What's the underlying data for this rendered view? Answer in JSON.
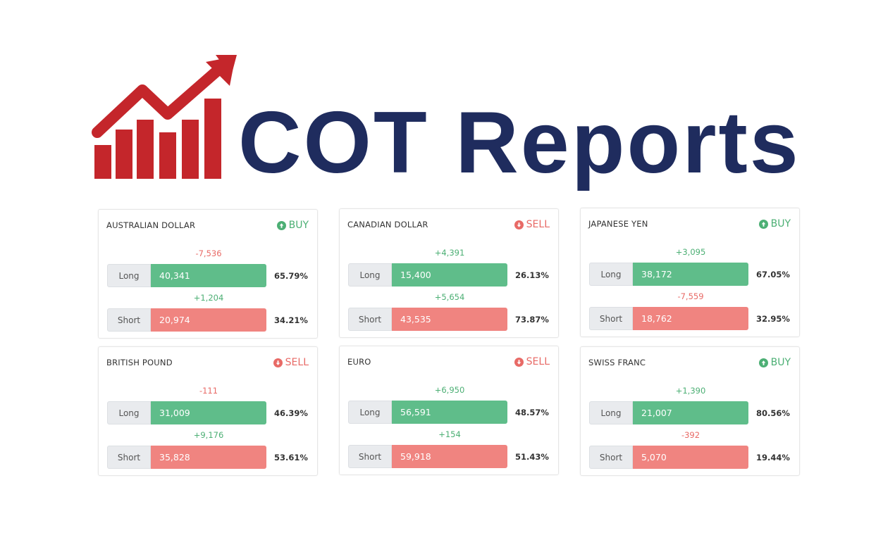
{
  "brand": {
    "name": "COT Reports",
    "logo_color": "#c4262b",
    "text_color": "#1f2c5e"
  },
  "colors": {
    "positive": "#5fbd8a",
    "negative": "#f08480",
    "delta_up": "#4caf74",
    "delta_down": "#e86a66"
  },
  "cards": [
    {
      "title": "AUSTRALIAN DOLLAR",
      "signal": "BUY",
      "long": {
        "label": "Long",
        "delta": "-7,536",
        "value": "40,341",
        "percent": "65.79%"
      },
      "short": {
        "label": "Short",
        "delta": "+1,204",
        "value": "20,974",
        "percent": "34.21%"
      }
    },
    {
      "title": "CANADIAN DOLLAR",
      "signal": "SELL",
      "long": {
        "label": "Long",
        "delta": "+4,391",
        "value": "15,400",
        "percent": "26.13%"
      },
      "short": {
        "label": "Short",
        "delta": "+5,654",
        "value": "43,535",
        "percent": "73.87%"
      }
    },
    {
      "title": "JAPANESE YEN",
      "signal": "BUY",
      "long": {
        "label": "Long",
        "delta": "+3,095",
        "value": "38,172",
        "percent": "67.05%"
      },
      "short": {
        "label": "Short",
        "delta": "-7,559",
        "value": "18,762",
        "percent": "32.95%"
      }
    },
    {
      "title": "BRITISH POUND",
      "signal": "SELL",
      "long": {
        "label": "Long",
        "delta": "-111",
        "value": "31,009",
        "percent": "46.39%"
      },
      "short": {
        "label": "Short",
        "delta": "+9,176",
        "value": "35,828",
        "percent": "53.61%"
      }
    },
    {
      "title": "EURO",
      "signal": "SELL",
      "long": {
        "label": "Long",
        "delta": "+6,950",
        "value": "56,591",
        "percent": "48.57%"
      },
      "short": {
        "label": "Short",
        "delta": "+154",
        "value": "59,918",
        "percent": "51.43%"
      }
    },
    {
      "title": "SWISS FRANC",
      "signal": "BUY",
      "long": {
        "label": "Long",
        "delta": "+1,390",
        "value": "21,007",
        "percent": "80.56%"
      },
      "short": {
        "label": "Short",
        "delta": "-392",
        "value": "5,070",
        "percent": "19.44%"
      }
    }
  ]
}
